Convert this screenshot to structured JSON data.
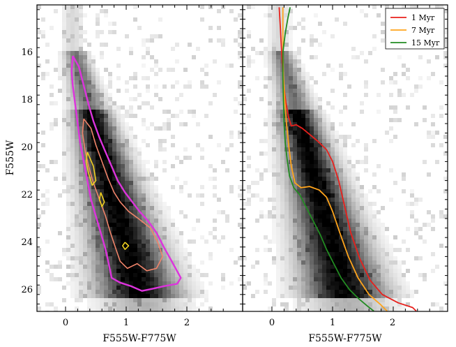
{
  "chart_data": [
    {
      "type": "heatmap",
      "panel": "left",
      "xlabel": "F555W-F775W",
      "ylabel": "F555W",
      "xlim": [
        -0.5,
        2.9
      ],
      "ylim": [
        26.9,
        14.1
      ],
      "y_inverted": true,
      "x_ticks": [
        "0",
        "1",
        "2"
      ],
      "y_ticks": [
        "16",
        "18",
        "20",
        "22",
        "24",
        "26"
      ],
      "grid": false,
      "background": "grayscale 2D histogram of stars",
      "contours": [
        {
          "level": "outer",
          "color": "#dd33dd",
          "points": [
            [
              0.12,
              16.15
            ],
            [
              0.22,
              16.6
            ],
            [
              0.3,
              17.4
            ],
            [
              0.38,
              18.2
            ],
            [
              0.46,
              18.9
            ],
            [
              0.56,
              19.6
            ],
            [
              0.66,
              20.2
            ],
            [
              0.76,
              20.8
            ],
            [
              0.86,
              21.4
            ],
            [
              0.98,
              21.9
            ],
            [
              1.1,
              22.3
            ],
            [
              1.22,
              22.7
            ],
            [
              1.36,
              23.1
            ],
            [
              1.5,
              23.6
            ],
            [
              1.62,
              24.2
            ],
            [
              1.75,
              24.8
            ],
            [
              1.9,
              25.5
            ],
            [
              1.84,
              25.75
            ],
            [
              1.62,
              25.85
            ],
            [
              1.45,
              25.95
            ],
            [
              1.26,
              26.05
            ],
            [
              1.08,
              25.85
            ],
            [
              0.9,
              25.7
            ],
            [
              0.76,
              25.5
            ],
            [
              0.72,
              25.0
            ],
            [
              0.66,
              24.3
            ],
            [
              0.58,
              23.6
            ],
            [
              0.5,
              22.9
            ],
            [
              0.42,
              22.2
            ],
            [
              0.36,
              21.4
            ],
            [
              0.3,
              20.6
            ],
            [
              0.24,
              19.8
            ],
            [
              0.2,
              19.0
            ],
            [
              0.16,
              18.2
            ],
            [
              0.12,
              17.4
            ],
            [
              0.1,
              16.8
            ],
            [
              0.12,
              16.15
            ]
          ]
        },
        {
          "level": "middle",
          "color": "#f0846a",
          "points": [
            [
              0.3,
              18.8
            ],
            [
              0.42,
              19.2
            ],
            [
              0.5,
              19.9
            ],
            [
              0.6,
              20.6
            ],
            [
              0.7,
              21.3
            ],
            [
              0.8,
              21.9
            ],
            [
              0.9,
              22.3
            ],
            [
              1.04,
              22.7
            ],
            [
              1.2,
              23.0
            ],
            [
              1.4,
              23.4
            ],
            [
              1.52,
              24.0
            ],
            [
              1.6,
              24.6
            ],
            [
              1.5,
              25.1
            ],
            [
              1.34,
              25.2
            ],
            [
              1.18,
              24.9
            ],
            [
              1.02,
              25.1
            ],
            [
              0.9,
              24.8
            ],
            [
              0.82,
              24.2
            ],
            [
              0.74,
              23.6
            ],
            [
              0.66,
              22.9
            ],
            [
              0.56,
              22.2
            ],
            [
              0.46,
              21.5
            ],
            [
              0.38,
              20.8
            ],
            [
              0.32,
              20.1
            ],
            [
              0.28,
              19.4
            ],
            [
              0.3,
              18.8
            ]
          ]
        },
        {
          "level": "inner-1",
          "color": "#f0d020",
          "points": [
            [
              0.36,
              20.2
            ],
            [
              0.46,
              20.8
            ],
            [
              0.5,
              21.4
            ],
            [
              0.44,
              21.6
            ],
            [
              0.38,
              21.1
            ],
            [
              0.34,
              20.6
            ],
            [
              0.36,
              20.2
            ]
          ]
        },
        {
          "level": "inner-2",
          "color": "#f0d020",
          "points": [
            [
              0.58,
              21.9
            ],
            [
              0.64,
              22.3
            ],
            [
              0.6,
              22.5
            ],
            [
              0.56,
              22.2
            ],
            [
              0.58,
              21.9
            ]
          ]
        },
        {
          "level": "inner-3",
          "color": "#f0d020",
          "points": [
            [
              0.98,
              24.0
            ],
            [
              1.04,
              24.15
            ],
            [
              0.98,
              24.3
            ],
            [
              0.94,
              24.15
            ],
            [
              0.98,
              24.0
            ]
          ]
        }
      ]
    },
    {
      "type": "line",
      "panel": "right",
      "xlabel": "F555W-F775W",
      "ylabel": "",
      "xlim": [
        -0.5,
        2.9
      ],
      "ylim": [
        26.9,
        14.1
      ],
      "y_inverted": true,
      "x_ticks": [
        "0",
        "1",
        "2"
      ],
      "grid": false,
      "legend_position": "top-right",
      "background": "grayscale 2D histogram of stars",
      "series": [
        {
          "name": "1 Myr",
          "color": "#e8201c",
          "points": [
            [
              0.12,
              14.1
            ],
            [
              0.14,
              15.0
            ],
            [
              0.16,
              16.0
            ],
            [
              0.18,
              16.8
            ],
            [
              0.2,
              17.5
            ],
            [
              0.23,
              18.1
            ],
            [
              0.27,
              18.7
            ],
            [
              0.32,
              19.1
            ],
            [
              0.4,
              19.05
            ],
            [
              0.5,
              19.2
            ],
            [
              0.62,
              19.45
            ],
            [
              0.76,
              19.75
            ],
            [
              0.9,
              20.1
            ],
            [
              1.0,
              20.6
            ],
            [
              1.1,
              21.4
            ],
            [
              1.2,
              22.5
            ],
            [
              1.3,
              23.6
            ],
            [
              1.45,
              24.7
            ],
            [
              1.62,
              25.6
            ],
            [
              1.82,
              26.2
            ],
            [
              2.08,
              26.55
            ],
            [
              2.32,
              26.75
            ],
            [
              2.38,
              26.9
            ]
          ]
        },
        {
          "name": "7 Myr",
          "color": "#ffa41c",
          "points": [
            [
              0.18,
              14.1
            ],
            [
              0.18,
              15.0
            ],
            [
              0.18,
              16.0
            ],
            [
              0.19,
              17.0
            ],
            [
              0.21,
              18.0
            ],
            [
              0.24,
              19.0
            ],
            [
              0.28,
              20.0
            ],
            [
              0.32,
              20.8
            ],
            [
              0.38,
              21.5
            ],
            [
              0.48,
              21.7
            ],
            [
              0.62,
              21.65
            ],
            [
              0.78,
              21.8
            ],
            [
              0.9,
              22.1
            ],
            [
              1.0,
              22.7
            ],
            [
              1.12,
              23.6
            ],
            [
              1.26,
              24.6
            ],
            [
              1.42,
              25.5
            ],
            [
              1.6,
              26.2
            ],
            [
              1.78,
              26.6
            ],
            [
              1.9,
              26.9
            ]
          ]
        },
        {
          "name": "15 Myr",
          "color": "#228b22",
          "points": [
            [
              0.3,
              14.1
            ],
            [
              0.26,
              14.6
            ],
            [
              0.22,
              15.2
            ],
            [
              0.18,
              16.0
            ],
            [
              0.18,
              17.0
            ],
            [
              0.19,
              18.0
            ],
            [
              0.2,
              19.0
            ],
            [
              0.22,
              19.8
            ],
            [
              0.25,
              20.5
            ],
            [
              0.29,
              21.2
            ],
            [
              0.36,
              21.7
            ],
            [
              0.46,
              22.0
            ],
            [
              0.56,
              22.5
            ],
            [
              0.68,
              23.1
            ],
            [
              0.8,
              23.7
            ],
            [
              0.9,
              24.3
            ],
            [
              1.02,
              24.9
            ],
            [
              1.14,
              25.5
            ],
            [
              1.28,
              26.0
            ],
            [
              1.44,
              26.4
            ],
            [
              1.58,
              26.7
            ],
            [
              1.68,
              26.9
            ]
          ]
        }
      ]
    }
  ]
}
